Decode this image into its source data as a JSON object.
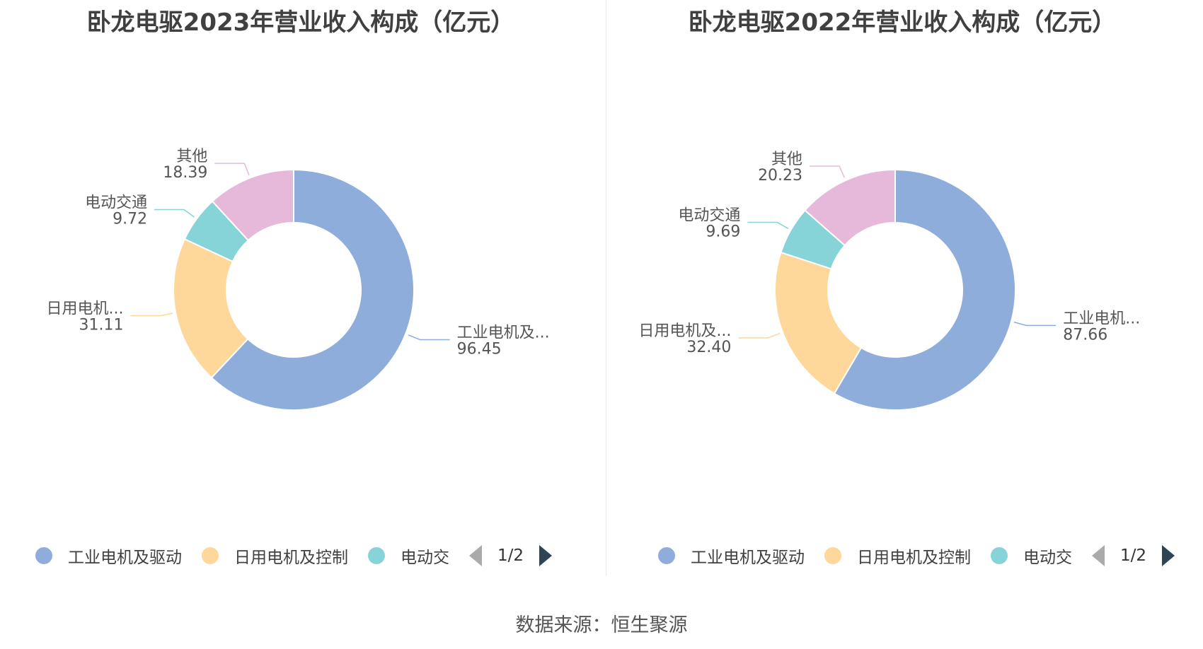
{
  "charts": [
    {
      "title": "卧龙电驱2023年营业收入构成（亿元）",
      "legend": {
        "items": [
          {
            "label": "工业电机及驱动",
            "color": "#8eadda"
          },
          {
            "label": "日用电机及控制",
            "color": "#fdd89a"
          },
          {
            "label": "电动交",
            "color": "#86d3d8"
          }
        ],
        "page": "1/2"
      }
    },
    {
      "title": "卧龙电驱2022年营业收入构成（亿元）",
      "legend": {
        "items": [
          {
            "label": "工业电机及驱动",
            "color": "#8eadda"
          },
          {
            "label": "日用电机及控制",
            "color": "#fdd89a"
          },
          {
            "label": "电动交",
            "color": "#86d3d8"
          }
        ],
        "page": "1/2"
      }
    }
  ],
  "chart_data": [
    {
      "type": "pie",
      "title": "卧龙电驱2023年营业收入构成（亿元）",
      "slices": [
        {
          "name": "工业电机及...",
          "value": 96.45,
          "value_label": "96.45",
          "color": "#8eadda"
        },
        {
          "name": "日用电机...",
          "value": 31.11,
          "value_label": "31.11",
          "color": "#fdd89a"
        },
        {
          "name": "电动交通",
          "value": 9.72,
          "value_label": "9.72",
          "color": "#86d3d8"
        },
        {
          "name": "其他",
          "value": 18.39,
          "value_label": "18.39",
          "color": "#e6b9da"
        }
      ]
    },
    {
      "type": "pie",
      "title": "卧龙电驱2022年营业收入构成（亿元）",
      "slices": [
        {
          "name": "工业电机...",
          "value": 87.66,
          "value_label": "87.66",
          "color": "#8eadda"
        },
        {
          "name": "日用电机及...",
          "value": 32.4,
          "value_label": "32.40",
          "color": "#fdd89a"
        },
        {
          "name": "电动交通",
          "value": 9.69,
          "value_label": "9.69",
          "color": "#86d3d8"
        },
        {
          "name": "其他",
          "value": 20.23,
          "value_label": "20.23",
          "color": "#e6b9da"
        }
      ]
    }
  ],
  "footer": {
    "source": "数据来源：恒生聚源"
  }
}
